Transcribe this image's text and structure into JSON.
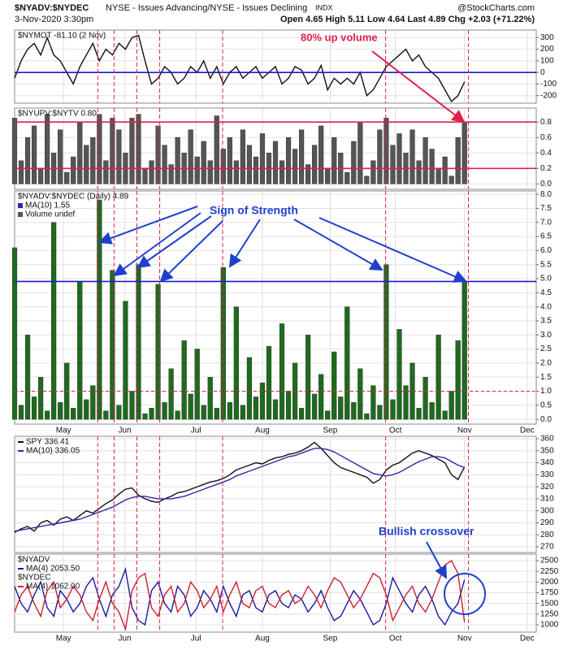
{
  "header": {
    "symbol": "$NYADV:$NYDEC",
    "description": "NYSE - Issues Advancing/NYSE - Issues Declining",
    "exchange": "INDX",
    "source": "@StockCharts.com",
    "date": "3-Nov-2020 3:30pm",
    "quote": "Open 4.65 High 5.11 Low 4.64 Last 4.89 Chg +2.03 (+71.22%)"
  },
  "event_lines": [
    12.75,
    15.25,
    18.75,
    22.25,
    31.9,
    56.9,
    69.6
  ],
  "event_color": "#e0204a",
  "chart_data": [
    {
      "type": "line",
      "title": "$NYMOT -81.10 (2 Nov)",
      "color": "#111111",
      "annotation": "80% up volume",
      "values": [
        -50,
        100,
        200,
        250,
        150,
        300,
        150,
        100,
        0,
        -100,
        50,
        150,
        250,
        100,
        200,
        150,
        250,
        200,
        300,
        320,
        100,
        -100,
        -50,
        50,
        0,
        -100,
        -50,
        50,
        0,
        100,
        -50,
        50,
        -100,
        0,
        50,
        -50,
        0,
        50,
        -50,
        0,
        50,
        -100,
        -50,
        50,
        20,
        -100,
        -50,
        60,
        -150,
        -50,
        -100,
        -50,
        -100,
        0,
        -200,
        -150,
        -50,
        50,
        100,
        150,
        200,
        100,
        150,
        50,
        0,
        -50,
        -150,
        -250,
        -200,
        -81.1
      ],
      "xlim": [
        0,
        80
      ],
      "ylim": [
        -265,
        365
      ],
      "yticks": [
        -200,
        -100,
        0,
        100,
        200,
        300
      ],
      "hlines": [
        {
          "value": 0,
          "color": "#1a1acc",
          "dash": false
        }
      ]
    },
    {
      "type": "bar",
      "title": "$NYUPV:$NYTV 0.80",
      "color": "#555555",
      "values": [
        0.85,
        0.3,
        0.6,
        0.75,
        0.2,
        0.9,
        0.4,
        0.7,
        0.15,
        0.35,
        0.8,
        0.5,
        0.6,
        0.9,
        0.3,
        0.85,
        0.7,
        0.4,
        0.85,
        0.9,
        0.2,
        0.3,
        0.75,
        0.5,
        0.25,
        0.6,
        0.4,
        0.7,
        0.35,
        0.55,
        0.3,
        0.88,
        0.45,
        0.6,
        0.3,
        0.7,
        0.5,
        0.35,
        0.65,
        0.4,
        0.55,
        0.3,
        0.6,
        0.45,
        0.7,
        0.25,
        0.5,
        0.75,
        0.2,
        0.6,
        0.4,
        0.15,
        0.55,
        0.8,
        0.1,
        0.3,
        0.7,
        0.85,
        0.5,
        0.65,
        0.4,
        0.7,
        0.3,
        0.6,
        0.45,
        0.2,
        0.35,
        0.1,
        0.6,
        0.8
      ],
      "xlim": [
        0,
        80
      ],
      "ylim": [
        -0.07,
        0.98
      ],
      "yticks": [
        {
          "value": 0,
          "label": "0.0"
        },
        0.2,
        0.4,
        0.6,
        0.8
      ],
      "hlines": [
        {
          "value": 0.8,
          "color": "#e0204a",
          "dash": false
        },
        {
          "value": 0.2,
          "color": "#e0204a",
          "dash": false
        }
      ]
    },
    {
      "type": "bar",
      "title": "$NYADV:$NYDEC (Daily) 4.89",
      "color": "#1e6b1e",
      "annotation": "Sign of Strength",
      "legend_entries": [
        "MA(10) 1.55",
        "Volume undef"
      ],
      "values": [
        6.1,
        0.5,
        3.0,
        0.8,
        1.5,
        0.3,
        7.0,
        0.6,
        2.0,
        0.4,
        4.9,
        0.7,
        1.2,
        7.8,
        0.3,
        5.3,
        0.5,
        4.2,
        1.0,
        5.5,
        0.2,
        0.4,
        4.8,
        0.6,
        1.8,
        0.3,
        2.8,
        0.9,
        2.5,
        0.5,
        1.5,
        0.4,
        5.4,
        0.6,
        4.0,
        0.5,
        2.2,
        0.8,
        1.3,
        2.6,
        0.7,
        3.4,
        1.0,
        2.0,
        0.4,
        3.0,
        0.9,
        1.6,
        0.3,
        2.4,
        0.8,
        4.0,
        0.6,
        1.8,
        0.2,
        1.2,
        0.5,
        5.5,
        0.7,
        3.2,
        1.2,
        2.0,
        0.4,
        1.5,
        0.6,
        3.0,
        0.3,
        1.0,
        2.8,
        4.89
      ],
      "xlim": [
        0,
        80
      ],
      "ylim": [
        -0.17,
        8.12
      ],
      "yticks": [
        {
          "value": 0,
          "label": "0.0"
        },
        0.5,
        {
          "value": 1,
          "label": "1.0"
        },
        1.5,
        {
          "value": 2,
          "label": "2.0"
        },
        2.5,
        {
          "value": 3,
          "label": "3.0"
        },
        3.5,
        {
          "value": 4,
          "label": "4.0"
        },
        4.5,
        {
          "value": 5,
          "label": "5.0"
        },
        5.5,
        {
          "value": 6,
          "label": "6.0"
        },
        6.5,
        {
          "value": 7,
          "label": "7.0"
        },
        7.5,
        {
          "value": 8,
          "label": "8.0"
        }
      ],
      "xticks": [
        {
          "value": 7.5,
          "label": "May"
        },
        {
          "value": 16.9,
          "label": "Jun"
        },
        {
          "value": 27.8,
          "label": "Jul"
        },
        {
          "value": 38,
          "label": "Aug"
        },
        {
          "value": 48.4,
          "label": "Sep"
        },
        {
          "value": 58.4,
          "label": "Oct"
        },
        {
          "value": 69,
          "label": "Nov"
        },
        {
          "value": 78.6,
          "label": "Dec"
        }
      ],
      "hlines": [
        {
          "value": 4.9,
          "color": "#1a1acc",
          "dash": false
        },
        {
          "value": 1.0,
          "color": "#e0204a",
          "dash": true
        }
      ]
    },
    {
      "type": "line",
      "series": [
        {
          "name": "SPY 336.41",
          "color": "#111111",
          "values": [
            282,
            285,
            287,
            283,
            290,
            292,
            288,
            293,
            295,
            292,
            296,
            300,
            298,
            302,
            306,
            309,
            314,
            318,
            319,
            313,
            310,
            308,
            307,
            310,
            312,
            315,
            316,
            318,
            320,
            322,
            324,
            325,
            327,
            330,
            334,
            336,
            338,
            340,
            339,
            342,
            344,
            345,
            347,
            348,
            350,
            353,
            357,
            352,
            346,
            340,
            336,
            334,
            332,
            330,
            328,
            323,
            326,
            334,
            338,
            340,
            344,
            348,
            350,
            348,
            346,
            343,
            340,
            330,
            326,
            336.41
          ]
        },
        {
          "name": "MA(10) 336.05",
          "color": "#2a2aa8",
          "values": [
            283,
            284,
            285,
            286,
            287,
            288,
            289,
            290,
            291,
            292,
            293,
            295,
            297,
            299,
            301,
            303,
            306,
            309,
            311,
            312,
            312,
            311,
            310,
            310,
            310,
            311,
            312,
            314,
            316,
            318,
            320,
            322,
            324,
            326,
            329,
            331,
            333,
            335,
            337,
            339,
            341,
            343,
            345,
            346,
            348,
            350,
            352,
            352,
            351,
            349,
            346,
            343,
            340,
            337,
            334,
            331,
            330,
            329,
            330,
            332,
            335,
            338,
            341,
            343,
            345,
            345,
            344,
            341,
            338,
            336.05
          ]
        }
      ],
      "xlim": [
        0,
        80
      ],
      "ylim": [
        265.3,
        362
      ],
      "yticks": [
        270,
        280,
        290,
        300,
        310,
        320,
        330,
        340,
        350,
        360
      ]
    },
    {
      "type": "line",
      "annotation": "Bullish crossover",
      "headers": [
        "$NYADV",
        "$NYDEC"
      ],
      "series": [
        {
          "name": "MA(4) 2053.50",
          "color": "#1a1aa0",
          "values": [
            1900,
            1500,
            1300,
            1700,
            2000,
            1400,
            1200,
            1800,
            1600,
            1300,
            1500,
            1900,
            2100,
            1600,
            1200,
            1700,
            1900,
            2300,
            1400,
            1100,
            1000,
            1800,
            2000,
            1500,
            1300,
            1900,
            1700,
            1200,
            1400,
            1800,
            1600,
            1300,
            1900,
            1500,
            1200,
            1700,
            1800,
            1400,
            1300,
            1700,
            1800,
            1500,
            1400,
            1700,
            1600,
            1300,
            1500,
            1800,
            1400,
            1100,
            1200,
            1500,
            1800,
            1600,
            1300,
            1000,
            1100,
            1500,
            2100,
            1800,
            1500,
            1300,
            1700,
            1900,
            1600,
            1200,
            1000,
            1300,
            1500,
            2053.5
          ]
        },
        {
          "name": "MA(4) 1062.00",
          "color": "#cc2030",
          "values": [
            1300,
            1700,
            1900,
            1500,
            1200,
            1800,
            2000,
            1400,
            1600,
            1900,
            1700,
            1300,
            1100,
            1600,
            2000,
            1500,
            1300,
            900,
            1800,
            2100,
            2200,
            1400,
            1200,
            1700,
            1900,
            1300,
            1500,
            2000,
            1800,
            1400,
            1600,
            1900,
            1300,
            1700,
            2000,
            1500,
            1400,
            1800,
            1900,
            1500,
            1400,
            1700,
            1800,
            1500,
            1600,
            1900,
            1700,
            1400,
            1800,
            2100,
            2000,
            1700,
            1400,
            1600,
            1900,
            2200,
            2100,
            1700,
            1100,
            1400,
            1700,
            1900,
            1500,
            1300,
            1600,
            2000,
            2400,
            2500,
            2200,
            1062
          ]
        }
      ],
      "xlim": [
        0,
        80
      ],
      "ylim": [
        829,
        2652
      ],
      "yticks": [
        1000,
        1250,
        1500,
        1750,
        2000,
        2250,
        2500
      ],
      "xticks": [
        {
          "value": 7.5,
          "label": "May"
        },
        {
          "value": 16.9,
          "label": "Jun"
        },
        {
          "value": 27.8,
          "label": "Jul"
        },
        {
          "value": 38,
          "label": "Aug"
        },
        {
          "value": 48.4,
          "label": "Sep"
        },
        {
          "value": 58.4,
          "label": "Oct"
        },
        {
          "value": 69,
          "label": "Nov"
        },
        {
          "value": 78.6,
          "label": "Dec"
        }
      ]
    }
  ]
}
